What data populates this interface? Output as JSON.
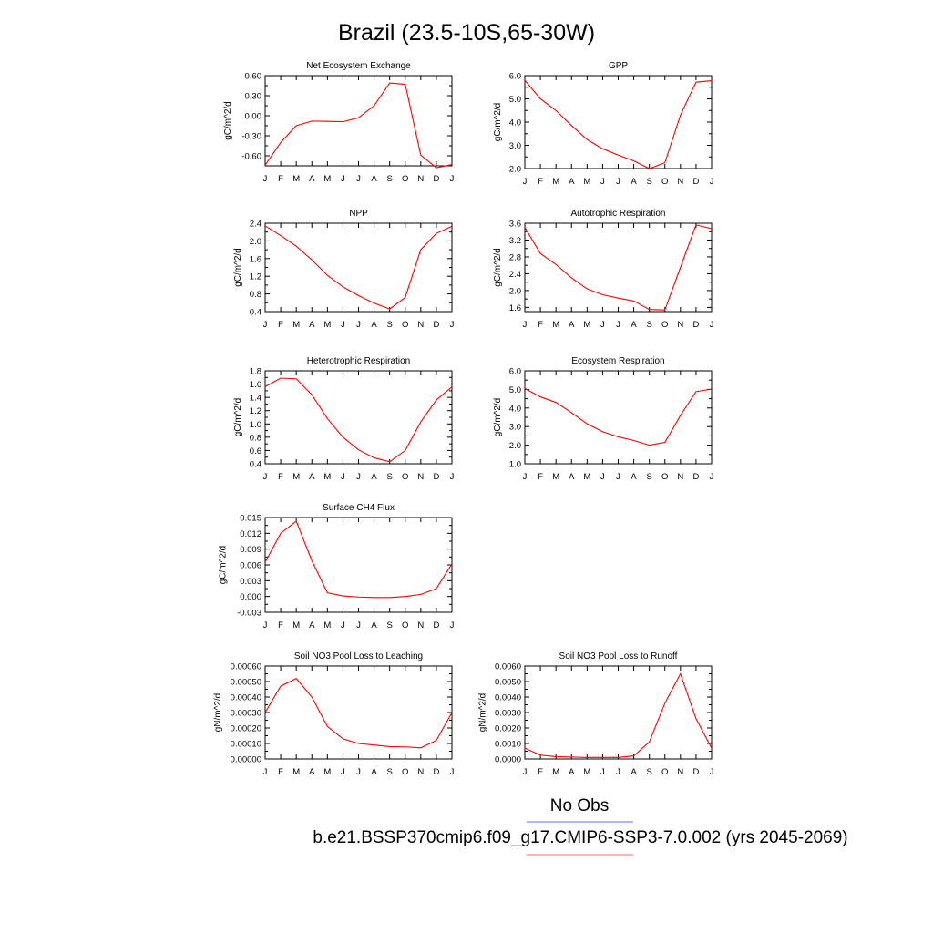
{
  "title": "Brazil (23.5-10S,65-30W)",
  "legend": {
    "items": [
      {
        "label": "No Obs",
        "color": "#6b6bff"
      },
      {
        "label": "b.e21.BSSP370cmip6.f09_g17.CMIP6-SSP3-7.0.002 (yrs 2045-2069)",
        "color": "#ff6b6b"
      }
    ]
  },
  "months": [
    "J",
    "F",
    "M",
    "A",
    "M",
    "J",
    "J",
    "A",
    "S",
    "O",
    "N",
    "D",
    "J"
  ],
  "series_color": "#ff0000",
  "chart_data": [
    {
      "type": "line",
      "title": "Net Ecosystem Exchange",
      "ylabel": "gC/m^2/d",
      "ylim": [
        -0.75,
        0.6
      ],
      "yticks": [
        0.6,
        0.3,
        0.0,
        -0.3,
        -0.6
      ],
      "ytick_labels": [
        "0.60",
        "0.30",
        "0.00",
        "-0.30",
        "-0.60"
      ],
      "values": [
        -0.74,
        -0.4,
        -0.15,
        -0.08,
        -0.085,
        -0.09,
        -0.03,
        0.15,
        0.49,
        0.47,
        -0.59,
        -0.78,
        -0.73
      ]
    },
    {
      "type": "line",
      "title": "GPP",
      "ylabel": "gC/m^2/d",
      "ylim": [
        2.0,
        6.0
      ],
      "yticks": [
        6.0,
        5.0,
        4.0,
        3.0,
        2.0
      ],
      "ytick_labels": [
        "6.0",
        "5.0",
        "4.0",
        "3.0",
        "2.0"
      ],
      "values": [
        5.8,
        5.0,
        4.5,
        3.85,
        3.25,
        2.85,
        2.58,
        2.33,
        2.0,
        2.25,
        4.3,
        5.72,
        5.78
      ]
    },
    {
      "type": "line",
      "title": "NPP",
      "ylabel": "gC/m^2/d",
      "ylim": [
        0.4,
        2.4
      ],
      "yticks": [
        2.4,
        2.0,
        1.6,
        1.2,
        0.8,
        0.4
      ],
      "ytick_labels": [
        "2.4",
        "2.0",
        "1.6",
        "1.2",
        "0.8",
        "0.4"
      ],
      "values": [
        2.34,
        2.12,
        1.88,
        1.57,
        1.22,
        0.96,
        0.76,
        0.59,
        0.46,
        0.72,
        1.8,
        2.17,
        2.33
      ]
    },
    {
      "type": "line",
      "title": "Autotrophic Respiration",
      "ylabel": "gC/m^2/d",
      "ylim": [
        1.5,
        3.6
      ],
      "yticks": [
        3.6,
        3.2,
        2.8,
        2.4,
        2.0,
        1.6
      ],
      "ytick_labels": [
        "3.6",
        "3.2",
        "2.8",
        "2.4",
        "2.0",
        "1.6"
      ],
      "values": [
        3.5,
        2.88,
        2.62,
        2.3,
        2.04,
        1.9,
        1.82,
        1.75,
        1.55,
        1.54,
        2.55,
        3.56,
        3.47
      ]
    },
    {
      "type": "line",
      "title": "Heterotrophic Respiration",
      "ylabel": "gC/m^2/d",
      "ylim": [
        0.4,
        1.8
      ],
      "yticks": [
        1.8,
        1.6,
        1.4,
        1.2,
        1.0,
        0.8,
        0.6,
        0.4
      ],
      "ytick_labels": [
        "1.8",
        "1.6",
        "1.4",
        "1.2",
        "1.0",
        "0.8",
        "0.6",
        "0.4"
      ],
      "values": [
        1.56,
        1.69,
        1.68,
        1.44,
        1.08,
        0.8,
        0.61,
        0.49,
        0.43,
        0.6,
        1.03,
        1.36,
        1.56
      ]
    },
    {
      "type": "line",
      "title": "Ecosystem Respiration",
      "ylabel": "gC/m^2/d",
      "ylim": [
        1.0,
        6.0
      ],
      "yticks": [
        6.0,
        5.0,
        4.0,
        3.0,
        2.0,
        1.0
      ],
      "ytick_labels": [
        "6.0",
        "5.0",
        "4.0",
        "3.0",
        "2.0",
        "1.0"
      ],
      "values": [
        5.05,
        4.6,
        4.3,
        3.75,
        3.15,
        2.72,
        2.45,
        2.25,
        2.0,
        2.15,
        3.6,
        4.88,
        5.02
      ]
    },
    {
      "type": "line",
      "title": "Surface CH4 Flux",
      "ylabel": "gC/m^2/d",
      "ylim": [
        -0.003,
        0.015
      ],
      "yticks": [
        0.015,
        0.012,
        0.009,
        0.006,
        0.003,
        0.0,
        -0.003
      ],
      "ytick_labels": [
        "0.015",
        "0.012",
        "0.009",
        "0.006",
        "0.003",
        "0.000",
        "-0.003"
      ],
      "values": [
        0.0065,
        0.012,
        0.0143,
        0.0068,
        0.0007,
        0.0001,
        -0.0001,
        -0.0002,
        -0.0002,
        0.0,
        0.0004,
        0.0015,
        0.0062
      ]
    },
    {
      "type": "line",
      "title": "Soil NO3 Pool Loss to Leaching",
      "ylabel": "gN/m^2/d",
      "ylim": [
        0.0,
        0.0006
      ],
      "yticks": [
        0.0006,
        0.0005,
        0.0004,
        0.0003,
        0.0002,
        0.0001,
        0.0
      ],
      "ytick_labels": [
        "0.00060",
        "0.00050",
        "0.00040",
        "0.00030",
        "0.00020",
        "0.00010",
        "0.00000"
      ],
      "values": [
        0.0003,
        0.00047,
        0.00052,
        0.0004,
        0.00021,
        0.00013,
        0.0001,
        9e-05,
        8e-05,
        7.8e-05,
        7.2e-05,
        0.00012,
        0.0003
      ]
    },
    {
      "type": "line",
      "title": "Soil NO3 Pool Loss to Runoff",
      "ylabel": "gN/m^2/d",
      "ylim": [
        0.0,
        0.006
      ],
      "yticks": [
        0.006,
        0.005,
        0.004,
        0.003,
        0.002,
        0.001,
        0.0
      ],
      "ytick_labels": [
        "0.0060",
        "0.0050",
        "0.0040",
        "0.0030",
        "0.0020",
        "0.0010",
        "0.0000"
      ],
      "values": [
        0.0007,
        0.00025,
        0.00015,
        0.00012,
        0.0001,
        0.0001,
        0.0001,
        0.0002,
        0.0011,
        0.0036,
        0.0055,
        0.0026,
        0.0007
      ]
    }
  ]
}
